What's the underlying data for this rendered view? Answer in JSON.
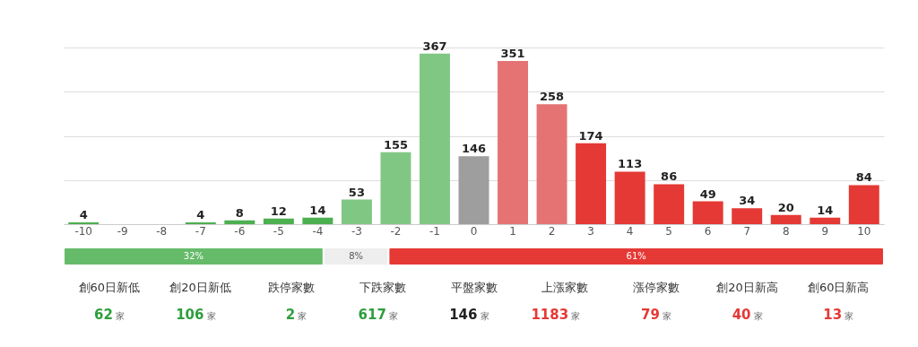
{
  "chart_data": [
    {
      "type": "bar",
      "categories": [
        "-10",
        "-9",
        "-8",
        "-7",
        "-6",
        "-5",
        "-4",
        "-3",
        "-2",
        "-1",
        "0",
        "1",
        "2",
        "3",
        "4",
        "5",
        "6",
        "7",
        "8",
        "9",
        "10"
      ],
      "values": [
        4,
        null,
        null,
        4,
        8,
        12,
        14,
        53,
        155,
        367,
        146,
        351,
        258,
        174,
        113,
        86,
        49,
        34,
        20,
        14,
        84
      ],
      "colors": [
        "#4caf50",
        "#4caf50",
        "#4caf50",
        "#4caf50",
        "#4caf50",
        "#4caf50",
        "#4caf50",
        "#81c784",
        "#81c784",
        "#81c784",
        "#9e9e9e",
        "#e57373",
        "#e57373",
        "#e53935",
        "#e53935",
        "#e53935",
        "#e53935",
        "#e53935",
        "#e53935",
        "#e53935",
        "#e53935"
      ],
      "data_labels": true,
      "ylim": [
        0,
        380
      ],
      "yticks": [
        {
          "value": 0,
          "label": null
        },
        {
          "value": 95,
          "label": null
        },
        {
          "value": 190,
          "label": null
        },
        {
          "value": 285,
          "label": null
        },
        {
          "value": 380,
          "label": null
        }
      ],
      "grid": "y",
      "tick_labels": "x"
    },
    {
      "type": "bar",
      "orientation": "horizontal",
      "stacked": true,
      "xlim": [
        0,
        101
      ],
      "tick_labels": false,
      "series": [
        {
          "color": "#66bb6a",
          "values": [
            32
          ],
          "value_labels": [
            "32%"
          ]
        },
        {
          "color": "#eeeeee",
          "values": [
            8
          ],
          "value_labels": [
            "8%"
          ]
        },
        {
          "color": "#e53935",
          "values": [
            61
          ],
          "value_labels": [
            "61%"
          ]
        }
      ]
    },
    {
      "type": "other",
      "categories": [
        "創60日新低",
        "創20日新低",
        "跌停家數",
        "下跌家數",
        "平盤家數",
        "上漲家數",
        "漲停家數",
        "創20日新高",
        "創60日新高"
      ],
      "values": [
        62,
        106,
        2,
        617,
        146,
        1183,
        79,
        40,
        13
      ],
      "data_labels": true,
      "colors": [
        "#2e9e3e",
        "#2e9e3e",
        "#2e9e3e",
        "#2e9e3e",
        "#222222",
        "#e53935",
        "#e53935",
        "#e53935",
        "#e53935"
      ],
      "annotations": [
        "家"
      ]
    }
  ]
}
